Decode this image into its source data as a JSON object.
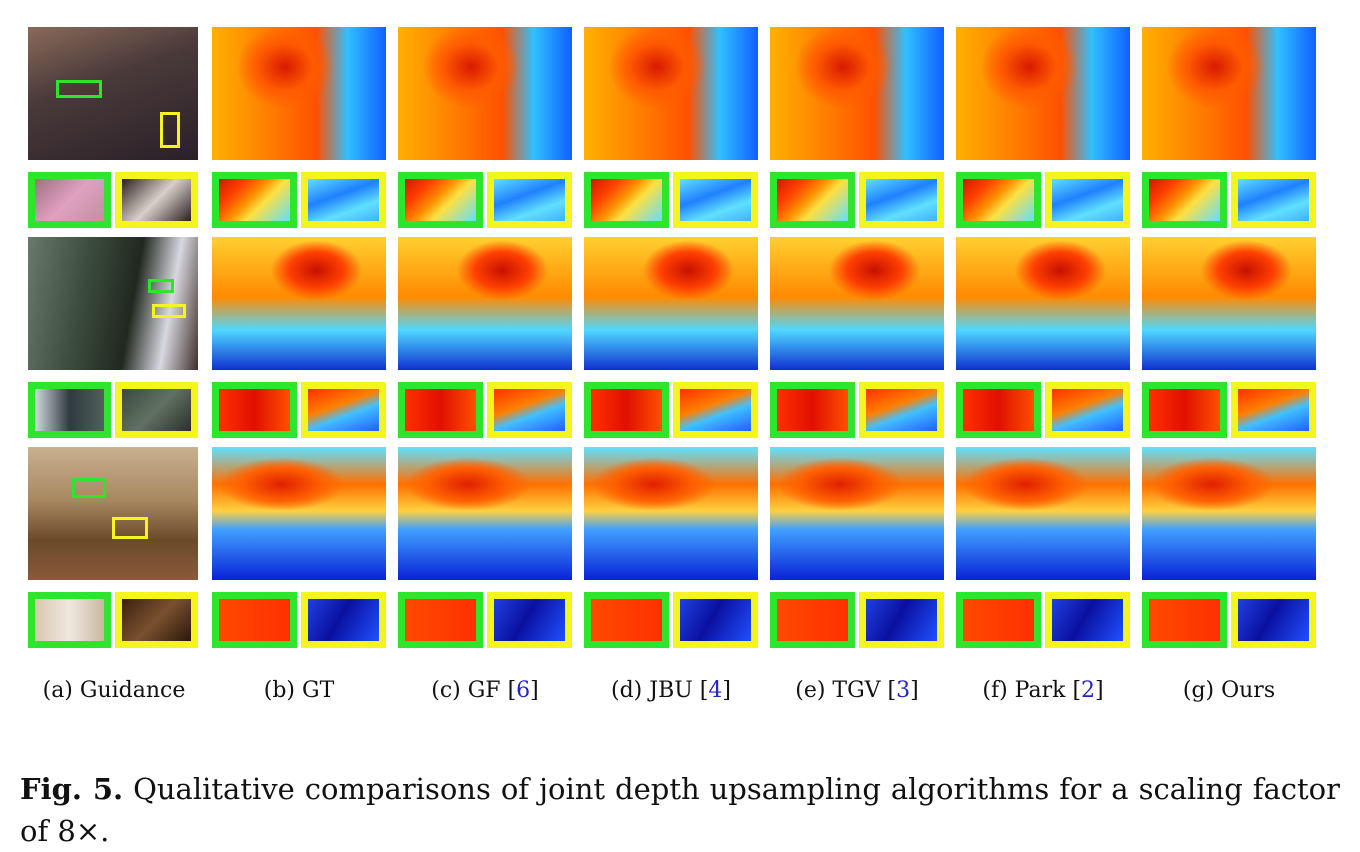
{
  "figure": {
    "columns": [
      {
        "key": "a",
        "label": "(a) Guidance",
        "ref": ""
      },
      {
        "key": "b",
        "label": "(b) GT",
        "ref": ""
      },
      {
        "key": "c",
        "label": "(c) GF [",
        "ref": "6",
        "tail": "]"
      },
      {
        "key": "d",
        "label": "(d) JBU [",
        "ref": "4",
        "tail": "]"
      },
      {
        "key": "e",
        "label": "(e) TGV [",
        "ref": "3",
        "tail": "]"
      },
      {
        "key": "f",
        "label": "(f) Park [",
        "ref": "2",
        "tail": "]"
      },
      {
        "key": "g",
        "label": "(g) Ours",
        "ref": ""
      }
    ],
    "caption_bold": "Fig. 5.",
    "caption_text": " Qualitative comparisons of joint depth upsampling algorithms for a scaling factor of 8×.",
    "colors": {
      "inset_green": "#2ee52e",
      "inset_yellow": "#f5f51e",
      "ref_link": "#2222cc"
    }
  }
}
